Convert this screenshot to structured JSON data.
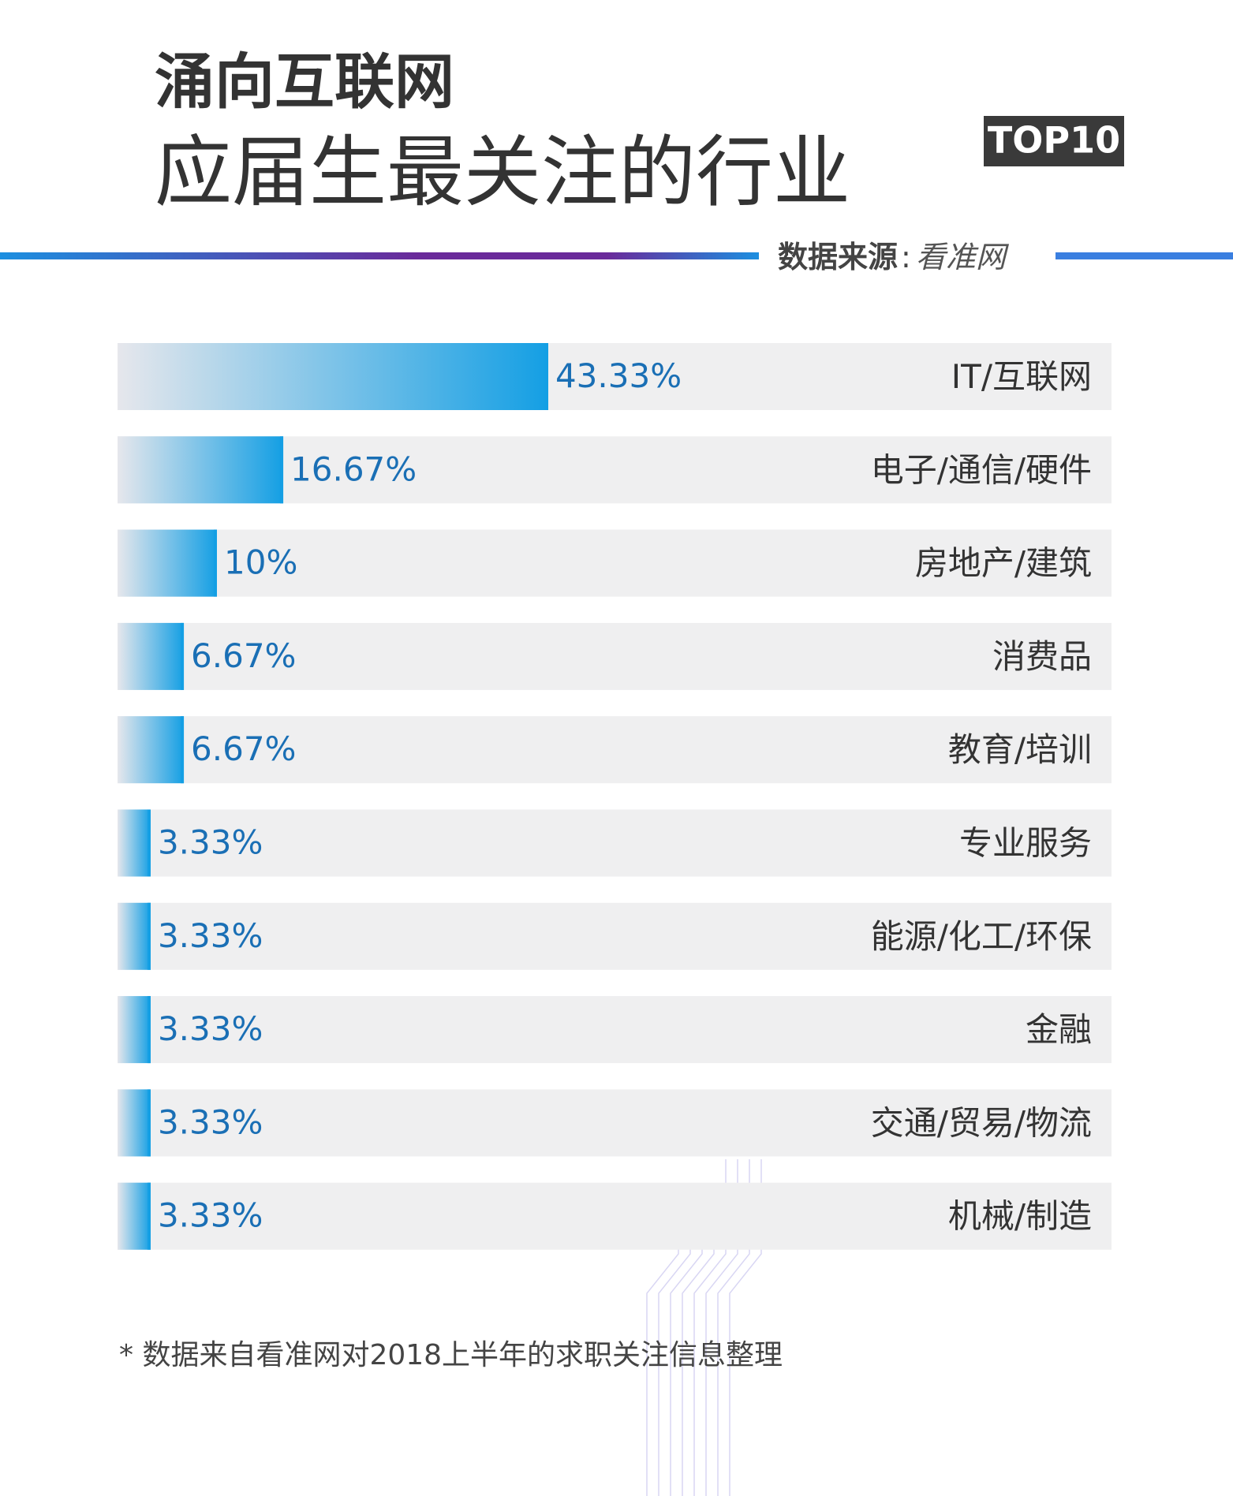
{
  "chart_data": {
    "type": "hbar",
    "title": "涌向互联网",
    "subtitle": "应届生最关注的行业",
    "badge": "TOP10",
    "source": {
      "label": "数据来源",
      "separator": ":",
      "name": "看准网"
    },
    "categories": [
      "IT/互联网",
      "电子/通信/硬件",
      "房地产/建筑",
      "消费品",
      "教育/培训",
      "专业服务",
      "能源/化工/环保",
      "金融",
      "交通/贸易/物流",
      "机械/制造"
    ],
    "values": [
      43.33,
      16.67,
      10,
      6.67,
      6.67,
      3.33,
      3.33,
      3.33,
      3.33,
      3.33
    ],
    "value_labels": [
      "43.33%",
      "16.67%",
      "10%",
      "6.67%",
      "6.67%",
      "3.33%",
      "3.33%",
      "3.33%",
      "3.33%",
      "3.33%"
    ],
    "color": "#149fe4",
    "xlim": [
      0,
      100
    ],
    "footnote": "* 数据来自看准网对2018上半年的求职关注信息整理"
  }
}
